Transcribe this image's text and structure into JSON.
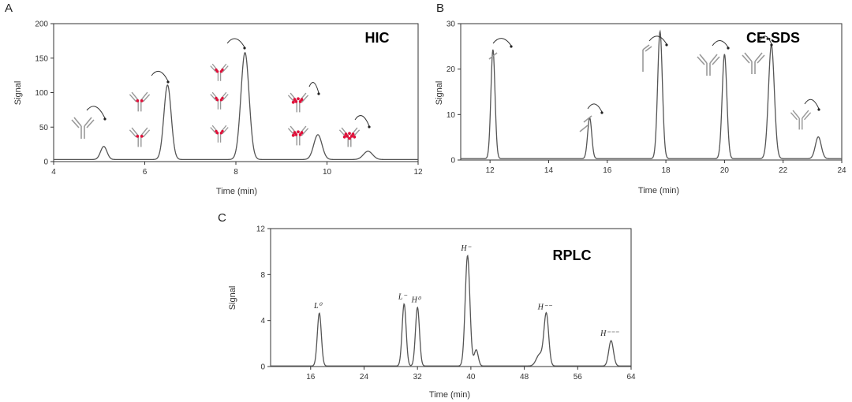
{
  "chart_data": [
    {
      "panel": "A",
      "type": "line",
      "title": "HIC",
      "xlabel": "Time (min)",
      "ylabel": "Signal",
      "xlim": [
        4,
        12
      ],
      "ylim": [
        0,
        200
      ],
      "xticks": [
        4,
        6,
        8,
        10,
        12
      ],
      "yticks": [
        0,
        50,
        100,
        150,
        200
      ],
      "baseline": 3,
      "peaks": [
        {
          "x": 5.1,
          "y": 19,
          "w": 0.07
        },
        {
          "x": 6.5,
          "y": 108,
          "w": 0.08
        },
        {
          "x": 8.2,
          "y": 155,
          "w": 0.09
        },
        {
          "x": 9.8,
          "y": 36,
          "w": 0.09
        },
        {
          "x": 10.9,
          "y": 12,
          "w": 0.1
        }
      ],
      "series": [
        {
          "values": []
        }
      ]
    },
    {
      "panel": "B",
      "type": "line",
      "title": "CE-SDS",
      "xlabel": "Time (min)",
      "ylabel": "Signal",
      "xlim": [
        11,
        24
      ],
      "ylim": [
        0,
        30
      ],
      "xticks": [
        12,
        14,
        16,
        18,
        20,
        22,
        24
      ],
      "yticks": [
        0,
        10,
        20,
        30
      ],
      "baseline": 0.3,
      "peaks": [
        {
          "x": 12.1,
          "y": 24,
          "w": 0.07
        },
        {
          "x": 15.4,
          "y": 9,
          "w": 0.07
        },
        {
          "x": 17.8,
          "y": 28,
          "w": 0.08
        },
        {
          "x": 20.0,
          "y": 23,
          "w": 0.08
        },
        {
          "x": 21.6,
          "y": 25,
          "w": 0.1
        },
        {
          "x": 23.2,
          "y": 4.8,
          "w": 0.1
        }
      ]
    },
    {
      "panel": "C",
      "type": "line",
      "title": "RPLC",
      "xlabel": "Time (min)",
      "ylabel": "Signal",
      "xlim": [
        10,
        64
      ],
      "ylim": [
        0,
        12
      ],
      "xticks": [
        16,
        24,
        32,
        40,
        48,
        56,
        64
      ],
      "yticks": [
        0,
        4,
        8,
        12
      ],
      "baseline": 0.05,
      "peaks": [
        {
          "x": 17.3,
          "y": 4.6,
          "w": 0.3,
          "label": "L⁰"
        },
        {
          "x": 30.0,
          "y": 5.4,
          "w": 0.3,
          "label": "L⁻"
        },
        {
          "x": 32.0,
          "y": 5.1,
          "w": 0.3,
          "label": "H⁰"
        },
        {
          "x": 39.5,
          "y": 9.6,
          "w": 0.35,
          "label": "H⁻"
        },
        {
          "x": 40.8,
          "y": 1.4,
          "w": 0.3
        },
        {
          "x": 50.3,
          "y": 1.0,
          "w": 0.5
        },
        {
          "x": 51.3,
          "y": 4.5,
          "w": 0.35,
          "label": "H⁻⁻"
        },
        {
          "x": 61.0,
          "y": 2.2,
          "w": 0.35,
          "label": "H⁻⁻⁻"
        }
      ]
    }
  ],
  "panel_labels": {
    "a": "A",
    "b": "B",
    "c": "C"
  },
  "colors": {
    "trace": "#555555",
    "axis": "#333333",
    "drug": "#e0103a",
    "antibody": "#999999"
  }
}
